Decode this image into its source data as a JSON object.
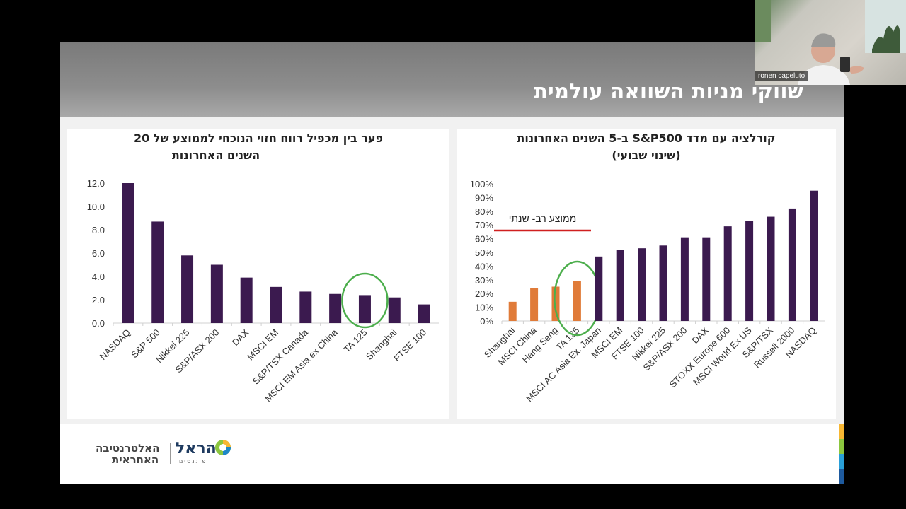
{
  "slide_title": "שווקי מניות השוואה עולמית",
  "webcam": {
    "participant_name": "ronen capeluto"
  },
  "logo": {
    "main": "הראל",
    "sub": "פיננסים",
    "alt_line1": "האלטרנטיבה",
    "alt_line2": "האחראית"
  },
  "colors": {
    "bar_dark": "#3b1a4f",
    "bar_orange": "#e07b39",
    "circle": "#4cae4c",
    "line_red": "#d02020"
  },
  "chart_data": [
    {
      "type": "bar",
      "title_line1": "פער בין מכפיל רווח חזוי הנוכחי לממוצע של 20",
      "title_line2": "השנים האחרונות",
      "categories": [
        "NASDAQ",
        "S&P 500",
        "Nikkei 225",
        "S&P/ASX 200",
        "DAX",
        "MSCI EM",
        "S&P/TSX Canada",
        "MSCI EM Asia ex China",
        "TA 125",
        "Shanghai",
        "FTSE 100"
      ],
      "values": [
        12.0,
        8.7,
        5.8,
        5.0,
        3.9,
        3.1,
        2.7,
        2.5,
        2.4,
        2.2,
        1.6
      ],
      "ylim": [
        0,
        12
      ],
      "yticks": [
        "0.0",
        "2.0",
        "4.0",
        "6.0",
        "8.0",
        "10.0",
        "12.0"
      ],
      "highlight_category": "TA 125"
    },
    {
      "type": "bar",
      "title_line1": "קורלציה עם מדד S&P500 ב-5 השנים האחרונות",
      "title_line2": "(שינוי שבועי)",
      "categories": [
        "Shanghai",
        "MSCI China",
        "Hang Seng",
        "TA 125",
        "MSCI AC Asia Ex. Japan",
        "MSCI EM",
        "FTSE 100",
        "Nikkei 225",
        "S&P/ASX 200",
        "DAX",
        "STOXX Europe 600",
        "MSCI World Ex US",
        "S&P/TSX",
        "Russell 2000",
        "NASDAQ"
      ],
      "values": [
        0.14,
        0.24,
        0.25,
        0.29,
        0.47,
        0.52,
        0.53,
        0.55,
        0.61,
        0.61,
        0.69,
        0.73,
        0.76,
        0.82,
        0.95
      ],
      "orange_count": 4,
      "ylim": [
        0,
        1
      ],
      "yticks": [
        "0%",
        "10%",
        "20%",
        "30%",
        "40%",
        "50%",
        "60%",
        "70%",
        "80%",
        "90%",
        "100%"
      ],
      "reference_line": {
        "value": 0.66,
        "label": "ממוצע רב- שנתי"
      },
      "highlight_category": "TA 125"
    }
  ]
}
